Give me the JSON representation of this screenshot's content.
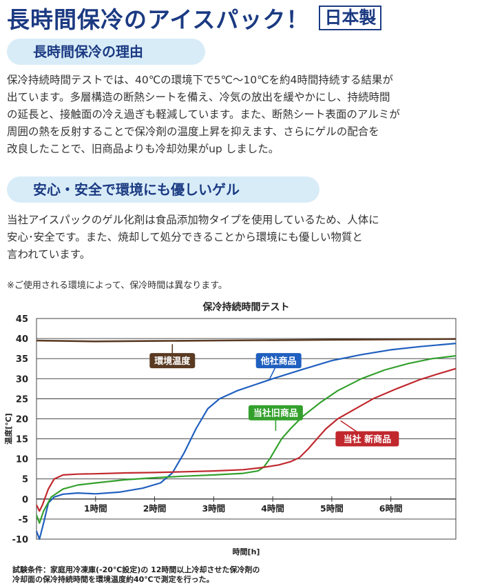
{
  "header": {
    "title": "長時間保冷のアイスパック！",
    "origin_badge": "日本製"
  },
  "section1": {
    "heading": "長時間保冷の理由",
    "body": "保冷持続時間テストでは、40℃の環境下で5℃～10℃を約4時間持続する結果が\n出ています。多層構造の断熱シートを備え、冷気の放出を緩やかにし、持続時間\nの延長と、接触面の冷え過ぎも軽減しています。また、断熱シート表面のアルミが\n周囲の熱を反射することで保冷剤の温度上昇を抑えます、さらにゲルの配合を\n改良したことで、旧商品よりも冷却効果がup しました。"
  },
  "section2": {
    "heading": "安心・安全で環境にも優しいゲル",
    "body": "当社アイスパックのゲル化剤は食品添加物タイプを使用しているため、人体に\n安心･安全です。また、焼却して処分できることから環境にも優しい物質と\n言われています。"
  },
  "note": "※ご使用される環境によって、保冷時間は異なります。",
  "footer": "試験条件：家庭用冷凍庫(-20℃設定)の 12時間以上冷却させた保冷剤の\n冷却面の保冷持続時間を環境温度約40℃で測定を行った。",
  "chart_data": {
    "type": "line",
    "title": "保冷持続時間テスト",
    "xlabel": "時間[h]",
    "ylabel": "温度[℃]",
    "xlim": [
      0,
      7.1
    ],
    "ylim": [
      -10,
      45
    ],
    "x_ticks": [
      1,
      2,
      3,
      4,
      5,
      6
    ],
    "x_tick_labels": [
      "1時間",
      "2時間",
      "3時間",
      "4時間",
      "5時間",
      "6時間"
    ],
    "y_ticks": [
      -10,
      -5,
      0,
      5,
      10,
      15,
      20,
      25,
      30,
      35,
      40,
      45
    ],
    "grid": true,
    "series": [
      {
        "name": "環境温度",
        "color": "#5a3a22",
        "points": [
          [
            0,
            39.5
          ],
          [
            1,
            39.3
          ],
          [
            2,
            39.4
          ],
          [
            3,
            39.5
          ],
          [
            4,
            39.6
          ],
          [
            5,
            39.7
          ],
          [
            6,
            39.8
          ],
          [
            7.1,
            39.9
          ]
        ]
      },
      {
        "name": "他社商品",
        "color": "#1f5fbf",
        "points": [
          [
            0,
            -8
          ],
          [
            0.05,
            -10
          ],
          [
            0.12,
            -6
          ],
          [
            0.2,
            -1
          ],
          [
            0.3,
            0.5
          ],
          [
            0.45,
            1.2
          ],
          [
            0.7,
            1.5
          ],
          [
            1,
            1.3
          ],
          [
            1.4,
            1.7
          ],
          [
            1.8,
            2.7
          ],
          [
            2.1,
            4
          ],
          [
            2.3,
            6.5
          ],
          [
            2.5,
            11.5
          ],
          [
            2.7,
            17.5
          ],
          [
            2.9,
            22.5
          ],
          [
            3.1,
            25
          ],
          [
            3.4,
            27
          ],
          [
            3.7,
            28.5
          ],
          [
            4,
            30
          ],
          [
            4.5,
            32.3
          ],
          [
            5,
            34.5
          ],
          [
            5.5,
            36
          ],
          [
            6,
            37.2
          ],
          [
            6.5,
            38
          ],
          [
            7.1,
            38.8
          ]
        ]
      },
      {
        "name": "当社旧商品",
        "color": "#33a02c",
        "points": [
          [
            0,
            -4
          ],
          [
            0.05,
            -6
          ],
          [
            0.12,
            -3
          ],
          [
            0.25,
            0.5
          ],
          [
            0.45,
            2.5
          ],
          [
            0.7,
            3.5
          ],
          [
            1,
            4
          ],
          [
            1.5,
            4.8
          ],
          [
            2,
            5.3
          ],
          [
            2.5,
            5.7
          ],
          [
            3,
            6
          ],
          [
            3.5,
            6.4
          ],
          [
            3.75,
            7
          ],
          [
            3.85,
            8
          ],
          [
            3.95,
            10
          ],
          [
            4.05,
            12.5
          ],
          [
            4.15,
            15
          ],
          [
            4.3,
            17.5
          ],
          [
            4.5,
            20.5
          ],
          [
            4.8,
            24
          ],
          [
            5.1,
            27
          ],
          [
            5.5,
            30
          ],
          [
            5.9,
            32.2
          ],
          [
            6.3,
            33.8
          ],
          [
            6.7,
            35
          ],
          [
            7.1,
            35.7
          ]
        ]
      },
      {
        "name": "当社 新商品",
        "color": "#c0282d",
        "points": [
          [
            0,
            -1.5
          ],
          [
            0.05,
            -3
          ],
          [
            0.1,
            -1.5
          ],
          [
            0.2,
            2.5
          ],
          [
            0.3,
            5
          ],
          [
            0.45,
            6
          ],
          [
            0.7,
            6.2
          ],
          [
            1,
            6.3
          ],
          [
            1.5,
            6.5
          ],
          [
            2,
            6.6
          ],
          [
            2.5,
            6.8
          ],
          [
            3,
            7
          ],
          [
            3.5,
            7.3
          ],
          [
            3.8,
            7.8
          ],
          [
            4.1,
            8.5
          ],
          [
            4.3,
            9.3
          ],
          [
            4.45,
            10.3
          ],
          [
            4.6,
            12.5
          ],
          [
            4.75,
            15
          ],
          [
            4.9,
            17.5
          ],
          [
            5.1,
            20
          ],
          [
            5.4,
            22.5
          ],
          [
            5.7,
            25
          ],
          [
            6.1,
            27.5
          ],
          [
            6.5,
            29.8
          ],
          [
            6.8,
            31.2
          ],
          [
            7.1,
            32.5
          ]
        ]
      }
    ],
    "annotations": [
      {
        "text": "環境温度",
        "x": 2.3,
        "y": 34.5,
        "bg": "#5a3a22",
        "point": [
          2.3,
          38.6
        ]
      },
      {
        "text": "他社商品",
        "x": 4.1,
        "y": 34.5,
        "bg": "#1f5fbf",
        "point": [
          3.95,
          30
        ]
      },
      {
        "text": "当社旧商品",
        "x": 4.05,
        "y": 21.5,
        "bg": "#33a02c",
        "point": [
          4.05,
          17
        ]
      },
      {
        "text": "当社 新商品",
        "x": 5.6,
        "y": 15,
        "bg": "#c0282d",
        "point": [
          5.15,
          19.5
        ]
      }
    ]
  }
}
